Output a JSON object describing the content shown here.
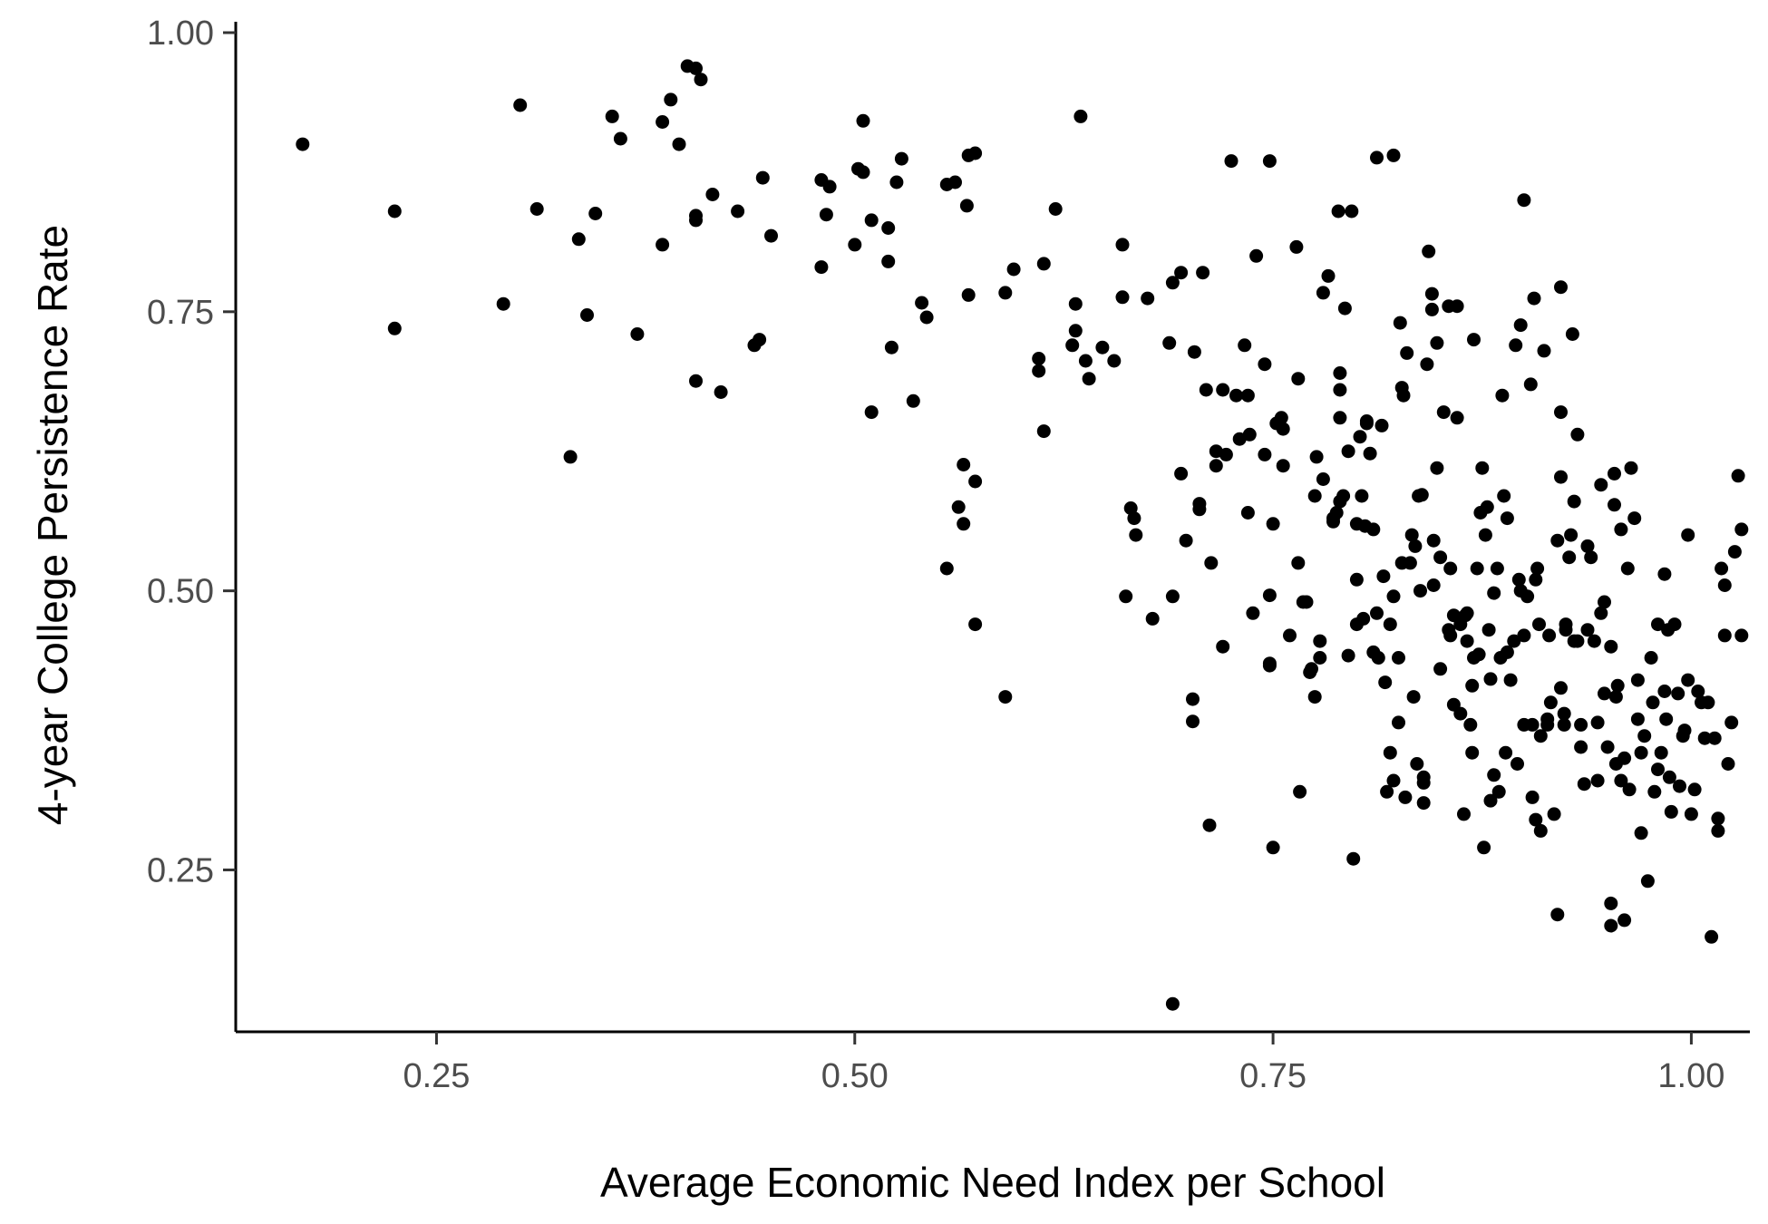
{
  "chart_data": {
    "type": "scatter",
    "xlabel": "Average Economic Need Index per School",
    "ylabel": "4-year College Persistence Rate",
    "xlim": [
      0.13,
      1.035
    ],
    "ylim": [
      0.105,
      1.013
    ],
    "x_ticks": [
      0.25,
      0.5,
      0.75,
      1.0
    ],
    "x_tick_labels": [
      "0.25",
      "0.50",
      "0.75",
      "1.00"
    ],
    "y_ticks": [
      0.25,
      0.5,
      0.75,
      1.0
    ],
    "y_tick_labels": [
      "0.25",
      "0.50",
      "0.75",
      "1.00"
    ],
    "grid": false,
    "legend": "none",
    "point_color": "#000000",
    "points": [
      [
        0.17,
        0.9
      ],
      [
        0.225,
        0.84
      ],
      [
        0.225,
        0.735
      ],
      [
        0.29,
        0.757
      ],
      [
        0.3,
        0.935
      ],
      [
        0.31,
        0.842
      ],
      [
        0.33,
        0.62
      ],
      [
        0.335,
        0.815
      ],
      [
        0.34,
        0.747
      ],
      [
        0.345,
        0.838
      ],
      [
        0.355,
        0.925
      ],
      [
        0.36,
        0.905
      ],
      [
        0.37,
        0.73
      ],
      [
        0.385,
        0.92
      ],
      [
        0.385,
        0.81
      ],
      [
        0.39,
        0.94
      ],
      [
        0.395,
        0.9
      ],
      [
        0.4,
        0.97
      ],
      [
        0.405,
        0.968
      ],
      [
        0.408,
        0.958
      ],
      [
        0.405,
        0.688
      ],
      [
        0.405,
        0.832
      ],
      [
        0.405,
        0.836
      ],
      [
        0.415,
        0.855
      ],
      [
        0.42,
        0.678
      ],
      [
        0.43,
        0.84
      ],
      [
        0.44,
        0.72
      ],
      [
        0.443,
        0.725
      ],
      [
        0.445,
        0.87
      ],
      [
        0.45,
        0.818
      ],
      [
        0.48,
        0.868
      ],
      [
        0.48,
        0.79
      ],
      [
        0.483,
        0.837
      ],
      [
        0.485,
        0.862
      ],
      [
        0.5,
        0.81
      ],
      [
        0.502,
        0.878
      ],
      [
        0.505,
        0.921
      ],
      [
        0.505,
        0.875
      ],
      [
        0.51,
        0.66
      ],
      [
        0.51,
        0.832
      ],
      [
        0.52,
        0.825
      ],
      [
        0.52,
        0.795
      ],
      [
        0.522,
        0.718
      ],
      [
        0.525,
        0.866
      ],
      [
        0.528,
        0.887
      ],
      [
        0.535,
        0.67
      ],
      [
        0.54,
        0.758
      ],
      [
        0.543,
        0.745
      ],
      [
        0.555,
        0.52
      ],
      [
        0.555,
        0.864
      ],
      [
        0.56,
        0.866
      ],
      [
        0.562,
        0.575
      ],
      [
        0.565,
        0.613
      ],
      [
        0.565,
        0.56
      ],
      [
        0.568,
        0.765
      ],
      [
        0.567,
        0.845
      ],
      [
        0.568,
        0.89
      ],
      [
        0.572,
        0.892
      ],
      [
        0.572,
        0.598
      ],
      [
        0.572,
        0.47
      ],
      [
        0.59,
        0.405
      ],
      [
        0.59,
        0.767
      ],
      [
        0.595,
        0.788
      ],
      [
        0.61,
        0.708
      ],
      [
        0.61,
        0.697
      ],
      [
        0.613,
        0.643
      ],
      [
        0.613,
        0.793
      ],
      [
        0.62,
        0.842
      ],
      [
        0.63,
        0.72
      ],
      [
        0.632,
        0.733
      ],
      [
        0.632,
        0.757
      ],
      [
        0.635,
        0.925
      ],
      [
        0.638,
        0.706
      ],
      [
        0.64,
        0.69
      ],
      [
        0.648,
        0.718
      ],
      [
        0.655,
        0.706
      ],
      [
        0.66,
        0.763
      ],
      [
        0.66,
        0.81
      ],
      [
        0.662,
        0.495
      ],
      [
        0.665,
        0.574
      ],
      [
        0.667,
        0.565
      ],
      [
        0.668,
        0.55
      ],
      [
        0.675,
        0.762
      ],
      [
        0.678,
        0.475
      ],
      [
        0.688,
        0.722
      ],
      [
        0.69,
        0.495
      ],
      [
        0.69,
        0.776
      ],
      [
        0.69,
        0.13
      ],
      [
        0.695,
        0.605
      ],
      [
        0.695,
        0.785
      ],
      [
        0.698,
        0.545
      ],
      [
        0.702,
        0.403
      ],
      [
        0.702,
        0.383
      ],
      [
        0.703,
        0.714
      ],
      [
        0.706,
        0.578
      ],
      [
        0.706,
        0.573
      ],
      [
        0.708,
        0.785
      ],
      [
        0.71,
        0.68
      ],
      [
        0.712,
        0.29
      ],
      [
        0.713,
        0.525
      ],
      [
        0.716,
        0.612
      ],
      [
        0.716,
        0.625
      ],
      [
        0.72,
        0.68
      ],
      [
        0.72,
        0.45
      ],
      [
        0.722,
        0.622
      ],
      [
        0.725,
        0.885
      ],
      [
        0.728,
        0.675
      ],
      [
        0.73,
        0.636
      ],
      [
        0.733,
        0.72
      ],
      [
        0.735,
        0.675
      ],
      [
        0.735,
        0.57
      ],
      [
        0.736,
        0.64
      ],
      [
        0.738,
        0.48
      ],
      [
        0.74,
        0.8
      ],
      [
        0.745,
        0.703
      ],
      [
        0.745,
        0.622
      ],
      [
        0.748,
        0.433
      ],
      [
        0.748,
        0.435
      ],
      [
        0.748,
        0.496
      ],
      [
        0.748,
        0.885
      ],
      [
        0.75,
        0.56
      ],
      [
        0.75,
        0.27
      ],
      [
        0.752,
        0.65
      ],
      [
        0.755,
        0.655
      ],
      [
        0.756,
        0.645
      ],
      [
        0.756,
        0.612
      ],
      [
        0.76,
        0.46
      ],
      [
        0.764,
        0.808
      ],
      [
        0.765,
        0.69
      ],
      [
        0.765,
        0.525
      ],
      [
        0.766,
        0.32
      ],
      [
        0.768,
        0.49
      ],
      [
        0.77,
        0.49
      ],
      [
        0.772,
        0.427
      ],
      [
        0.773,
        0.43
      ],
      [
        0.775,
        0.405
      ],
      [
        0.775,
        0.585
      ],
      [
        0.776,
        0.62
      ],
      [
        0.778,
        0.44
      ],
      [
        0.778,
        0.455
      ],
      [
        0.78,
        0.767
      ],
      [
        0.78,
        0.6
      ],
      [
        0.783,
        0.782
      ],
      [
        0.786,
        0.565
      ],
      [
        0.786,
        0.562
      ],
      [
        0.788,
        0.57
      ],
      [
        0.789,
        0.84
      ],
      [
        0.79,
        0.695
      ],
      [
        0.79,
        0.68
      ],
      [
        0.79,
        0.655
      ],
      [
        0.79,
        0.58
      ],
      [
        0.792,
        0.585
      ],
      [
        0.793,
        0.753
      ],
      [
        0.795,
        0.625
      ],
      [
        0.795,
        0.442
      ],
      [
        0.797,
        0.84
      ],
      [
        0.798,
        0.26
      ],
      [
        0.8,
        0.56
      ],
      [
        0.8,
        0.47
      ],
      [
        0.8,
        0.51
      ],
      [
        0.802,
        0.638
      ],
      [
        0.803,
        0.585
      ],
      [
        0.804,
        0.475
      ],
      [
        0.805,
        0.558
      ],
      [
        0.806,
        0.652
      ],
      [
        0.806,
        0.65
      ],
      [
        0.808,
        0.623
      ],
      [
        0.81,
        0.555
      ],
      [
        0.81,
        0.445
      ],
      [
        0.812,
        0.888
      ],
      [
        0.812,
        0.48
      ],
      [
        0.813,
        0.44
      ],
      [
        0.815,
        0.648
      ],
      [
        0.816,
        0.513
      ],
      [
        0.817,
        0.418
      ],
      [
        0.818,
        0.32
      ],
      [
        0.82,
        0.47
      ],
      [
        0.82,
        0.355
      ],
      [
        0.822,
        0.33
      ],
      [
        0.822,
        0.89
      ],
      [
        0.822,
        0.495
      ],
      [
        0.825,
        0.382
      ],
      [
        0.825,
        0.44
      ],
      [
        0.826,
        0.74
      ],
      [
        0.827,
        0.682
      ],
      [
        0.827,
        0.525
      ],
      [
        0.828,
        0.675
      ],
      [
        0.829,
        0.315
      ],
      [
        0.83,
        0.713
      ],
      [
        0.832,
        0.525
      ],
      [
        0.833,
        0.55
      ],
      [
        0.834,
        0.405
      ],
      [
        0.835,
        0.54
      ],
      [
        0.836,
        0.345
      ],
      [
        0.837,
        0.585
      ],
      [
        0.838,
        0.5
      ],
      [
        0.839,
        0.586
      ],
      [
        0.84,
        0.333
      ],
      [
        0.84,
        0.328
      ],
      [
        0.84,
        0.31
      ],
      [
        0.842,
        0.703
      ],
      [
        0.843,
        0.804
      ],
      [
        0.845,
        0.766
      ],
      [
        0.845,
        0.752
      ],
      [
        0.846,
        0.545
      ],
      [
        0.846,
        0.505
      ],
      [
        0.848,
        0.722
      ],
      [
        0.848,
        0.61
      ],
      [
        0.85,
        0.53
      ],
      [
        0.85,
        0.43
      ],
      [
        0.852,
        0.66
      ],
      [
        0.855,
        0.755
      ],
      [
        0.855,
        0.465
      ],
      [
        0.856,
        0.52
      ],
      [
        0.856,
        0.46
      ],
      [
        0.858,
        0.478
      ],
      [
        0.858,
        0.398
      ],
      [
        0.86,
        0.755
      ],
      [
        0.86,
        0.655
      ],
      [
        0.862,
        0.47
      ],
      [
        0.862,
        0.39
      ],
      [
        0.864,
        0.3
      ],
      [
        0.865,
        0.478
      ],
      [
        0.866,
        0.455
      ],
      [
        0.866,
        0.48
      ],
      [
        0.868,
        0.38
      ],
      [
        0.869,
        0.415
      ],
      [
        0.869,
        0.355
      ],
      [
        0.87,
        0.725
      ],
      [
        0.87,
        0.44
      ],
      [
        0.872,
        0.52
      ],
      [
        0.873,
        0.443
      ],
      [
        0.874,
        0.57
      ],
      [
        0.875,
        0.61
      ],
      [
        0.876,
        0.27
      ],
      [
        0.877,
        0.55
      ],
      [
        0.878,
        0.575
      ],
      [
        0.879,
        0.465
      ],
      [
        0.88,
        0.421
      ],
      [
        0.88,
        0.312
      ],
      [
        0.882,
        0.335
      ],
      [
        0.882,
        0.498
      ],
      [
        0.884,
        0.52
      ],
      [
        0.885,
        0.32
      ],
      [
        0.886,
        0.44
      ],
      [
        0.887,
        0.675
      ],
      [
        0.888,
        0.585
      ],
      [
        0.889,
        0.355
      ],
      [
        0.89,
        0.565
      ],
      [
        0.89,
        0.445
      ],
      [
        0.892,
        0.42
      ],
      [
        0.894,
        0.455
      ],
      [
        0.895,
        0.72
      ],
      [
        0.896,
        0.345
      ],
      [
        0.897,
        0.51
      ],
      [
        0.898,
        0.738
      ],
      [
        0.898,
        0.5
      ],
      [
        0.9,
        0.85
      ],
      [
        0.9,
        0.38
      ],
      [
        0.9,
        0.46
      ],
      [
        0.902,
        0.495
      ],
      [
        0.904,
        0.685
      ],
      [
        0.905,
        0.38
      ],
      [
        0.905,
        0.315
      ],
      [
        0.906,
        0.762
      ],
      [
        0.907,
        0.51
      ],
      [
        0.907,
        0.295
      ],
      [
        0.908,
        0.52
      ],
      [
        0.909,
        0.47
      ],
      [
        0.91,
        0.37
      ],
      [
        0.91,
        0.285
      ],
      [
        0.912,
        0.715
      ],
      [
        0.914,
        0.385
      ],
      [
        0.914,
        0.38
      ],
      [
        0.915,
        0.46
      ],
      [
        0.916,
        0.4
      ],
      [
        0.918,
        0.3
      ],
      [
        0.92,
        0.21
      ],
      [
        0.92,
        0.545
      ],
      [
        0.922,
        0.413
      ],
      [
        0.922,
        0.602
      ],
      [
        0.922,
        0.66
      ],
      [
        0.922,
        0.772
      ],
      [
        0.924,
        0.38
      ],
      [
        0.924,
        0.39
      ],
      [
        0.925,
        0.47
      ],
      [
        0.925,
        0.465
      ],
      [
        0.927,
        0.53
      ],
      [
        0.928,
        0.55
      ],
      [
        0.929,
        0.73
      ],
      [
        0.93,
        0.455
      ],
      [
        0.93,
        0.58
      ],
      [
        0.932,
        0.64
      ],
      [
        0.932,
        0.455
      ],
      [
        0.934,
        0.38
      ],
      [
        0.934,
        0.36
      ],
      [
        0.936,
        0.327
      ],
      [
        0.938,
        0.54
      ],
      [
        0.938,
        0.465
      ],
      [
        0.94,
        0.53
      ],
      [
        0.942,
        0.455
      ],
      [
        0.944,
        0.382
      ],
      [
        0.944,
        0.33
      ],
      [
        0.946,
        0.595
      ],
      [
        0.946,
        0.48
      ],
      [
        0.948,
        0.49
      ],
      [
        0.948,
        0.408
      ],
      [
        0.95,
        0.36
      ],
      [
        0.952,
        0.45
      ],
      [
        0.952,
        0.22
      ],
      [
        0.952,
        0.2
      ],
      [
        0.954,
        0.605
      ],
      [
        0.954,
        0.577
      ],
      [
        0.955,
        0.405
      ],
      [
        0.955,
        0.345
      ],
      [
        0.956,
        0.415
      ],
      [
        0.958,
        0.555
      ],
      [
        0.958,
        0.33
      ],
      [
        0.96,
        0.35
      ],
      [
        0.96,
        0.205
      ],
      [
        0.962,
        0.52
      ],
      [
        0.963,
        0.322
      ],
      [
        0.964,
        0.61
      ],
      [
        0.966,
        0.565
      ],
      [
        0.968,
        0.42
      ],
      [
        0.968,
        0.385
      ],
      [
        0.97,
        0.283
      ],
      [
        0.97,
        0.355
      ],
      [
        0.972,
        0.37
      ],
      [
        0.974,
        0.24
      ],
      [
        0.976,
        0.44
      ],
      [
        0.977,
        0.4
      ],
      [
        0.978,
        0.32
      ],
      [
        0.98,
        0.34
      ],
      [
        0.98,
        0.47
      ],
      [
        0.982,
        0.355
      ],
      [
        0.984,
        0.515
      ],
      [
        0.984,
        0.41
      ],
      [
        0.985,
        0.385
      ],
      [
        0.986,
        0.465
      ],
      [
        0.987,
        0.333
      ],
      [
        0.988,
        0.302
      ],
      [
        0.99,
        0.47
      ],
      [
        0.992,
        0.408
      ],
      [
        0.993,
        0.325
      ],
      [
        0.995,
        0.37
      ],
      [
        0.996,
        0.375
      ],
      [
        0.998,
        0.55
      ],
      [
        0.998,
        0.42
      ],
      [
        1.0,
        0.3
      ],
      [
        1.002,
        0.322
      ],
      [
        1.004,
        0.41
      ],
      [
        1.006,
        0.4
      ],
      [
        1.008,
        0.368
      ],
      [
        1.01,
        0.4
      ],
      [
        1.012,
        0.19
      ],
      [
        1.014,
        0.368
      ],
      [
        1.016,
        0.285
      ],
      [
        1.016,
        0.296
      ],
      [
        1.018,
        0.52
      ],
      [
        1.02,
        0.505
      ],
      [
        1.02,
        0.46
      ],
      [
        1.022,
        0.345
      ],
      [
        1.024,
        0.382
      ],
      [
        1.026,
        0.535
      ],
      [
        1.028,
        0.603
      ],
      [
        1.03,
        0.46
      ],
      [
        1.03,
        0.555
      ]
    ]
  }
}
